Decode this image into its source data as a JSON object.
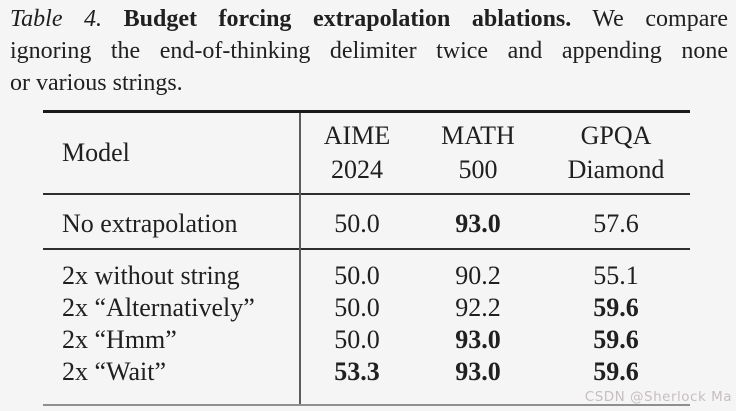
{
  "caption": {
    "label": "Table 4.",
    "title": "Budget forcing extrapolation ablations.",
    "line1_rest": "We compare",
    "line2": "ignoring the end-of-thinking delimiter twice and appending none",
    "line3": "or various strings."
  },
  "table": {
    "header": {
      "model": "Model",
      "metrics": [
        {
          "line1": "AIME",
          "line2": "2024"
        },
        {
          "line1": "MATH",
          "line2": "500"
        },
        {
          "line1": "GPQA",
          "line2": "Diamond"
        }
      ]
    },
    "baseline_row": {
      "model": "No extrapolation",
      "values": [
        {
          "text": "50.0",
          "bold": false
        },
        {
          "text": "93.0",
          "bold": true
        },
        {
          "text": "57.6",
          "bold": false
        }
      ]
    },
    "ablation_rows": [
      {
        "model": "2x without string",
        "values": [
          {
            "text": "50.0",
            "bold": false
          },
          {
            "text": "90.2",
            "bold": false
          },
          {
            "text": "55.1",
            "bold": false
          }
        ]
      },
      {
        "model": "2x “Alternatively”",
        "values": [
          {
            "text": "50.0",
            "bold": false
          },
          {
            "text": "92.2",
            "bold": false
          },
          {
            "text": "59.6",
            "bold": true
          }
        ]
      },
      {
        "model": "2x “Hmm”",
        "values": [
          {
            "text": "50.0",
            "bold": false
          },
          {
            "text": "93.0",
            "bold": true
          },
          {
            "text": "59.6",
            "bold": true
          }
        ]
      },
      {
        "model": "2x “Wait”",
        "values": [
          {
            "text": "53.3",
            "bold": true
          },
          {
            "text": "93.0",
            "bold": true
          },
          {
            "text": "59.6",
            "bold": true
          }
        ]
      }
    ]
  },
  "watermark": {
    "text": "CSDN @Sherlock Ma"
  },
  "colors": {
    "background": "#f5f5f5",
    "text": "#202020",
    "rule_heavy": "#1a1a1a",
    "rule_light": "#2e2e2e",
    "rule_bottom": "#8f8f8f",
    "watermark": "#c8bec0"
  }
}
